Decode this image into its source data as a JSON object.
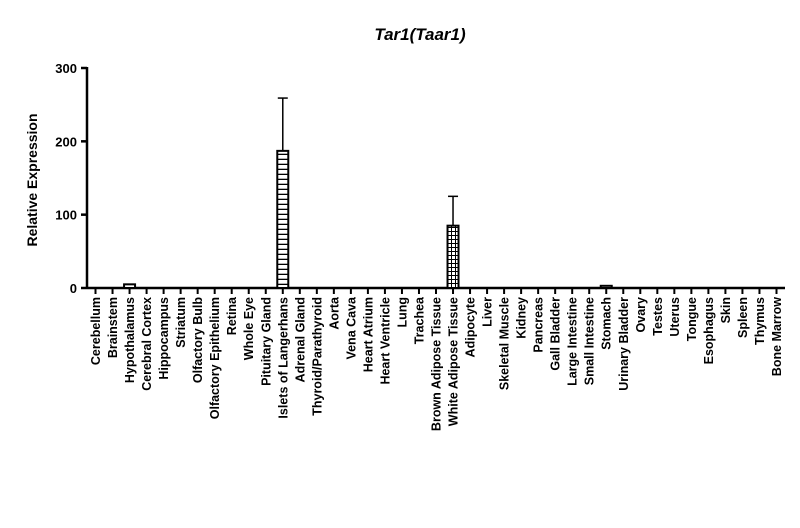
{
  "chart_data": {
    "type": "bar",
    "title": "Tar1(Taar1)",
    "xlabel": "",
    "ylabel": "Relative Expression",
    "ylim": [
      0,
      300
    ],
    "yticks": [
      0,
      100,
      200,
      300
    ],
    "grid": false,
    "categories": [
      "Cerebellum",
      "Brainstem",
      "Hypothalamus",
      "Cerebral Cortex",
      "Hippocampus",
      "Striatum",
      "Olfactory Bulb",
      "Olfactory Epithelium",
      "Retina",
      "Whole Eye",
      "Pituitary Gland",
      "Islets of Langerhans",
      "Adrenal Gland",
      "Thyroid/Parathyroid",
      "Aorta",
      "Vena Cava",
      "Heart Atrium",
      "Heart Ventricle",
      "Lung",
      "Trachea",
      "Brown Adipose Tissue",
      "White Adipose Tissue",
      "Adipocyte",
      "Liver",
      "Skeletal Muscle",
      "Kidney",
      "Pancreas",
      "Gall Bladder",
      "Large Intestine",
      "Small Intestine",
      "Stomach",
      "Urinary Bladder",
      "Ovary",
      "Testes",
      "Uterus",
      "Tongue",
      "Esophagus",
      "Skin",
      "Spleen",
      "Thymus",
      "Bone Marrow"
    ],
    "values": [
      0,
      0,
      5,
      0,
      0,
      0,
      0,
      0,
      0,
      0,
      0,
      187,
      0,
      0,
      0,
      0,
      0,
      0,
      0,
      0,
      0,
      85,
      0,
      0,
      0,
      0,
      0,
      0,
      0,
      0,
      3,
      0,
      0,
      0,
      0,
      0,
      0,
      0,
      0,
      0,
      0
    ],
    "errors": [
      0,
      0,
      0,
      0,
      0,
      0,
      0,
      0,
      0,
      0,
      0,
      72,
      0,
      0,
      0,
      0,
      0,
      0,
      0,
      0,
      0,
      40,
      0,
      0,
      0,
      0,
      0,
      0,
      0,
      0,
      0,
      0,
      0,
      0,
      0,
      0,
      0,
      0,
      0,
      0,
      0
    ]
  }
}
